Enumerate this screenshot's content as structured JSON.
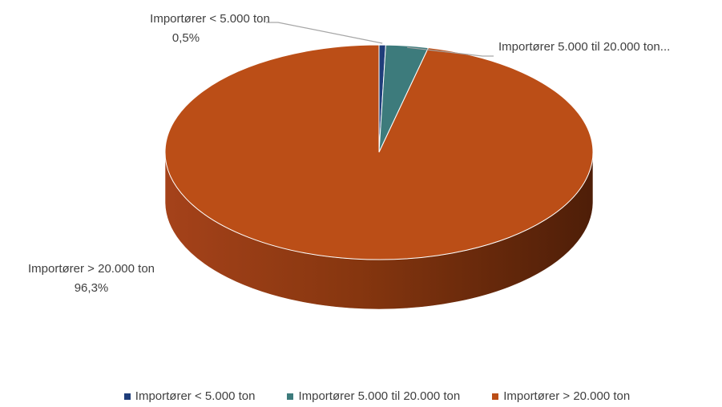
{
  "chart_data": {
    "type": "pie",
    "style": "3d",
    "categories": [
      "Importører < 5.000 ton",
      "Importører 5.000 til 20.000 ton",
      "Importører  > 20.000 ton"
    ],
    "values": [
      0.5,
      3.2,
      96.3
    ],
    "value_format": "percent, comma decimal",
    "data_labels": [
      {
        "name": "Importører < 5.000 ton",
        "value": "0,5%"
      },
      {
        "name": "Importører 5.000 til 20.000 ton...",
        "value": ""
      },
      {
        "name": "Importører  > 20.000 ton",
        "value": "96,3%"
      }
    ],
    "colors": [
      "#1f3d7a",
      "#3d7b7c",
      "#bb4e17"
    ],
    "legend": {
      "position": "bottom",
      "entries": [
        "Importører < 5.000 ton",
        "Importører 5.000 til 20.000 ton",
        "Importører  > 20.000 ton"
      ]
    }
  }
}
